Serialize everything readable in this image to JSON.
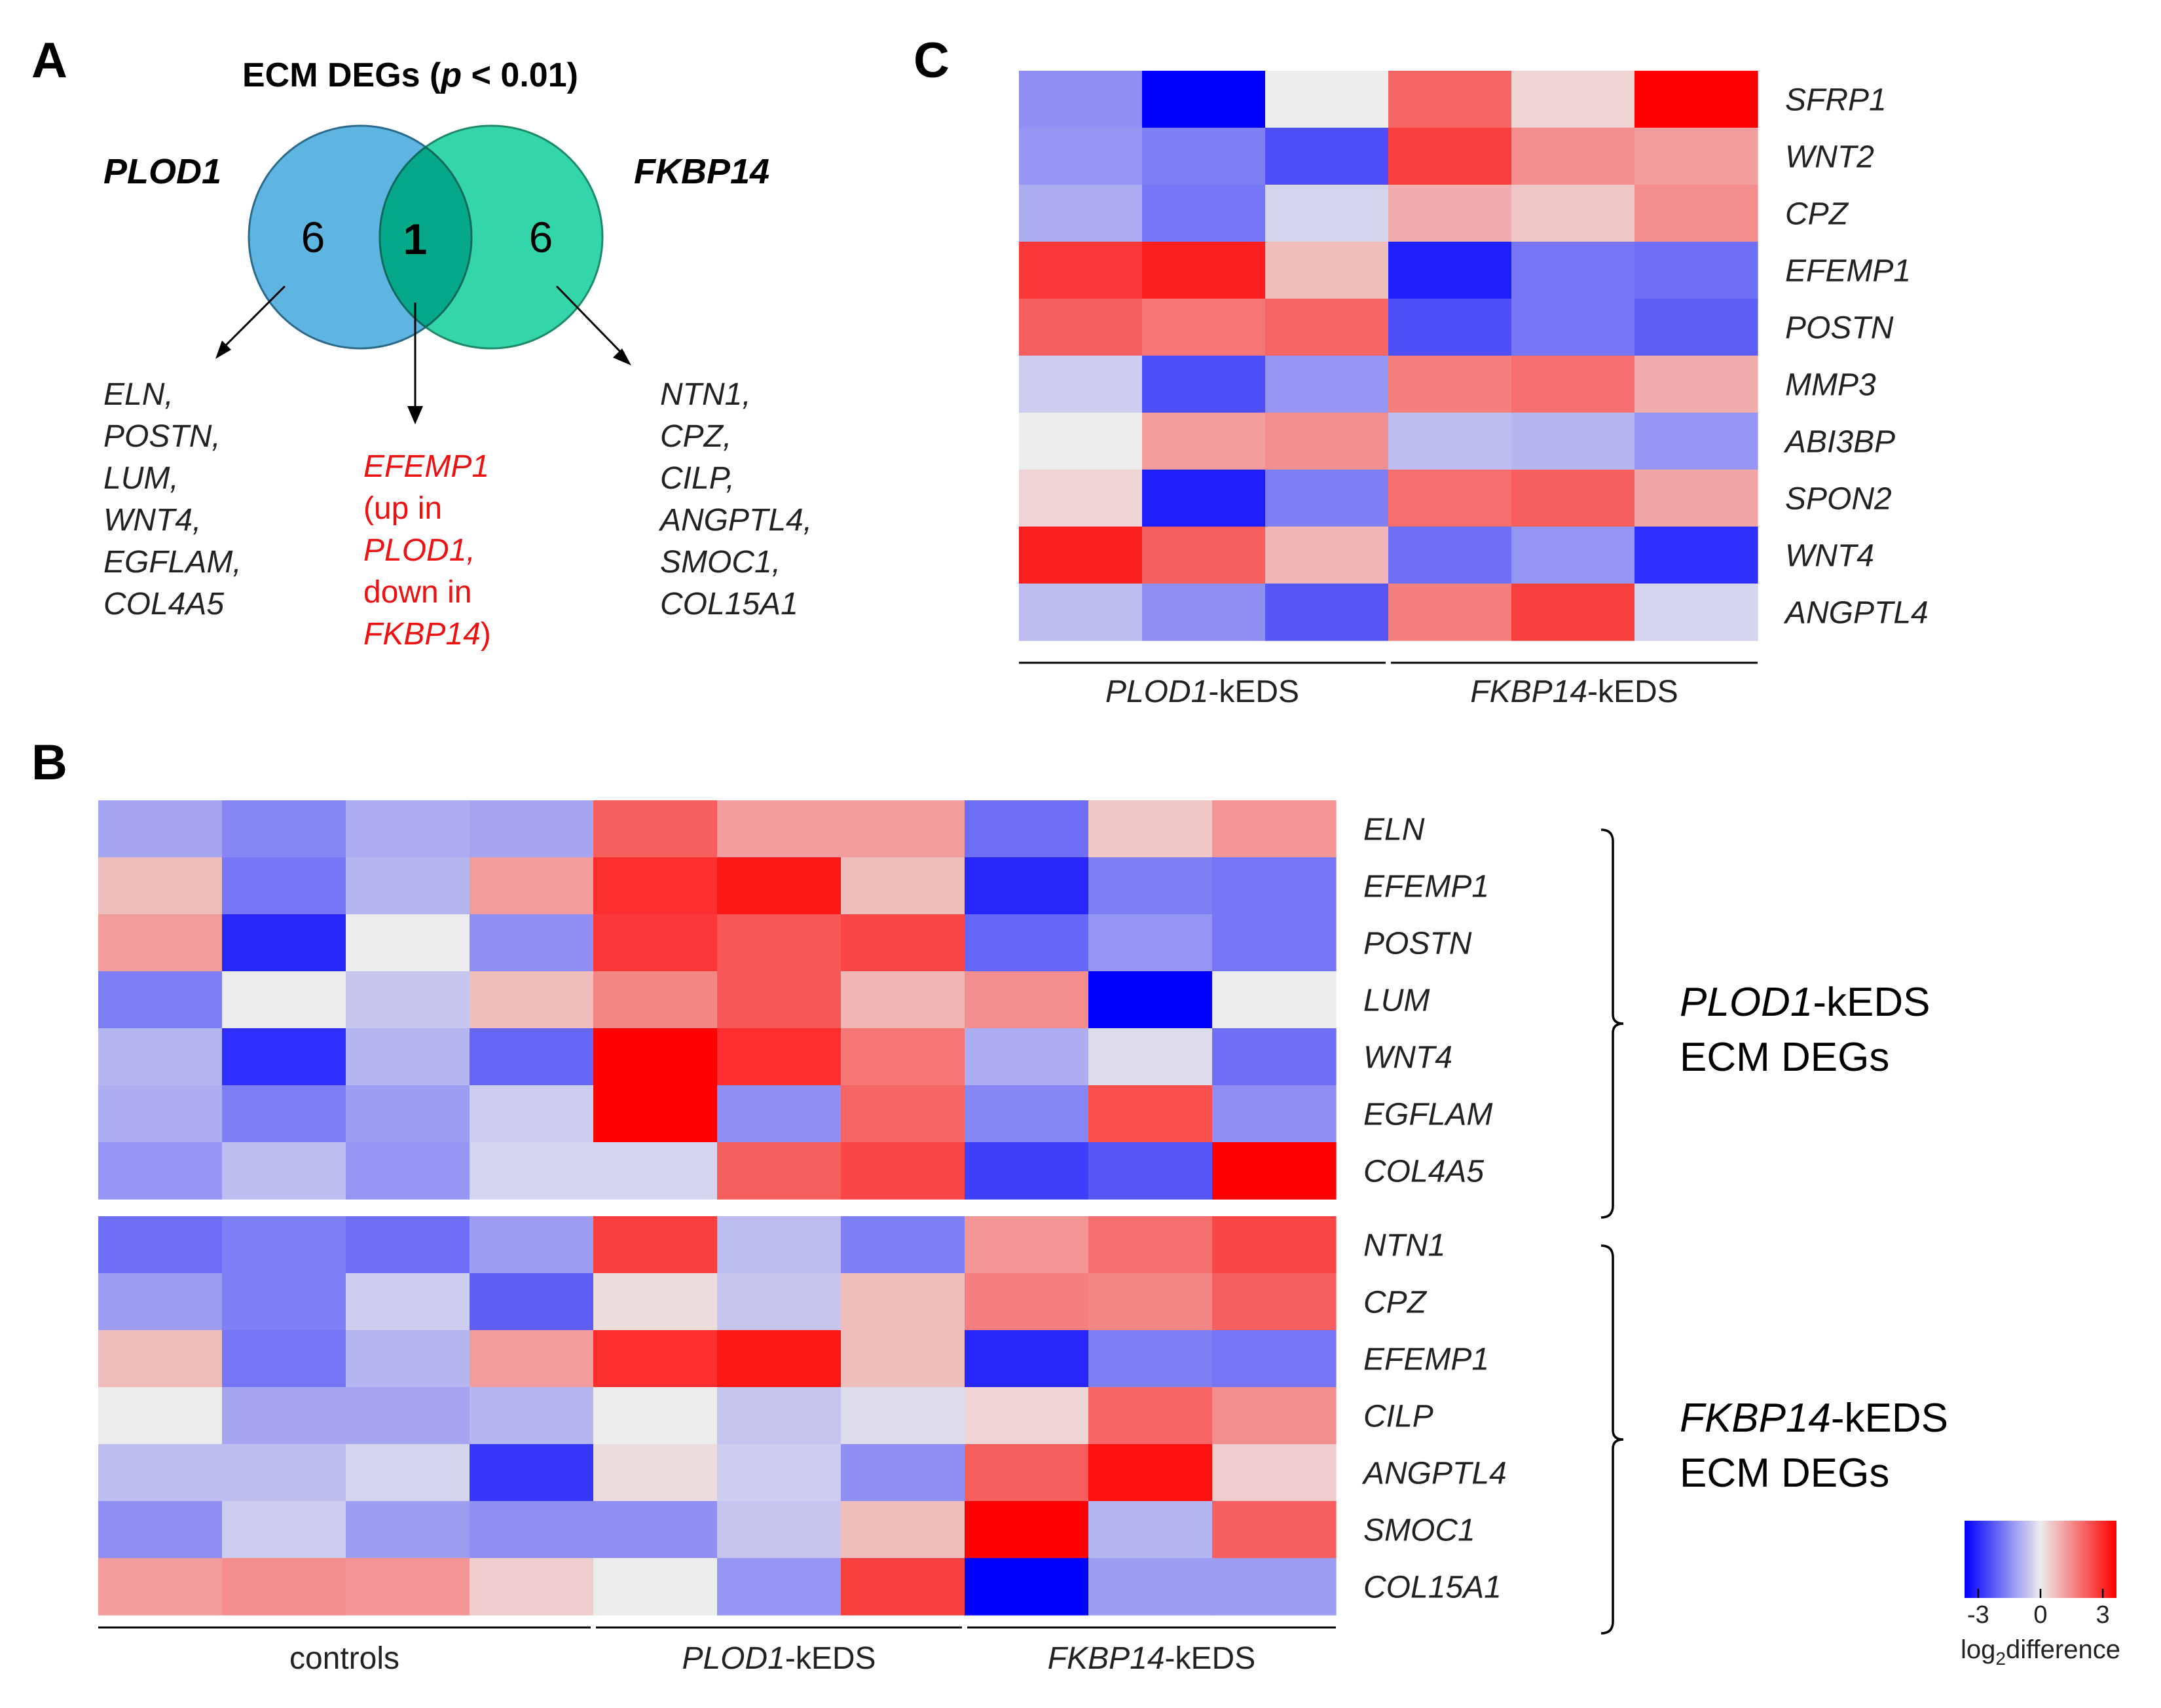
{
  "panels": {
    "a": "A",
    "b": "B",
    "c": "C"
  },
  "venn": {
    "title_prefix": "ECM DEGs (",
    "title_p": "p",
    "title_suffix": " < 0.01)",
    "left_set": "PLOD1",
    "right_set": "FKBP14",
    "left_only": "6",
    "shared": "1",
    "right_only": "6",
    "left_genes": [
      "ELN,",
      "POSTN,",
      "LUM,",
      "WNT4,",
      "EGFLAM,",
      "COL4A5"
    ],
    "shared_gene_lines": [
      {
        "text": "EFEMP1",
        "italic": true
      },
      {
        "text": "(up in",
        "italic": false
      },
      {
        "text": "PLOD1,",
        "italic": true
      },
      {
        "text": "down in",
        "italic": false
      },
      {
        "parts": [
          {
            "text": "FKBP14",
            "italic": true
          },
          {
            "text": ")",
            "italic": false
          }
        ]
      }
    ],
    "right_genes": [
      "NTN1,",
      "CPZ,",
      "CILP,",
      "ANGPTL4,",
      "SMOC1,",
      "COL15A1"
    ],
    "colors": {
      "left": "#5fb5e1",
      "right": "#33d6a8",
      "overlap": "#05a98a",
      "shared_text": "#ee1111"
    }
  },
  "chart_data": [
    {
      "type": "heatmap",
      "panel": "C",
      "value_label": "log2 difference",
      "vlim": [
        -3,
        3
      ],
      "rows": [
        "SFRP1",
        "WNT2",
        "CPZ",
        "EFEMP1",
        "POSTN",
        "MMP3",
        "ABI3BP",
        "SPON2",
        "WNT4",
        "ANGPTL4"
      ],
      "column_groups": [
        {
          "label_italic": "PLOD1",
          "label_rest": "-kEDS",
          "n": 3
        },
        {
          "label_italic": "FKBP14",
          "label_rest": "-kEDS",
          "n": 3
        }
      ],
      "values": [
        [
          -1.2,
          -3.0,
          0.0,
          1.7,
          0.3,
          3.0
        ],
        [
          -1.1,
          -1.4,
          -2.0,
          2.2,
          1.2,
          1.0
        ],
        [
          -0.8,
          -1.5,
          -0.3,
          0.8,
          0.5,
          1.2
        ],
        [
          2.3,
          2.6,
          0.6,
          -2.6,
          -1.5,
          -1.6
        ],
        [
          1.8,
          1.5,
          1.7,
          -2.0,
          -1.5,
          -1.8
        ],
        [
          -0.4,
          -2.0,
          -1.1,
          1.4,
          1.6,
          0.8
        ],
        [
          0.0,
          1.0,
          1.2,
          -0.6,
          -0.7,
          -1.1
        ],
        [
          0.3,
          -2.6,
          -1.4,
          1.6,
          1.8,
          0.9
        ],
        [
          2.6,
          1.8,
          0.7,
          -1.6,
          -1.1,
          -2.4
        ],
        [
          -0.6,
          -1.2,
          -1.9,
          1.4,
          2.2,
          -0.3
        ]
      ]
    },
    {
      "type": "heatmap",
      "panel": "B",
      "value_label": "log2 difference",
      "vlim": [
        -3,
        3
      ],
      "column_groups": [
        {
          "label_italic": "",
          "label_rest": "controls",
          "n": 4
        },
        {
          "label_italic": "PLOD1",
          "label_rest": "-kEDS",
          "n": 3
        },
        {
          "label_italic": "FKBP14",
          "label_rest": "-kEDS",
          "n": 3
        }
      ],
      "blocks": [
        {
          "bracket_italic": "PLOD1",
          "bracket_rest": "-kEDS",
          "bracket_line2": "ECM DEGs",
          "rows": [
            "ELN",
            "EFEMP1",
            "POSTN",
            "LUM",
            "WNT4",
            "EGFLAM",
            "COL4A5"
          ],
          "values": [
            [
              -0.9,
              -1.3,
              -0.8,
              -0.9,
              1.8,
              1.0,
              1.0,
              -1.6,
              0.5,
              1.1
            ],
            [
              0.6,
              -1.5,
              -0.7,
              1.0,
              2.4,
              2.7,
              0.6,
              -2.5,
              -1.4,
              -1.5
            ],
            [
              1.0,
              -2.5,
              0.0,
              -1.2,
              2.3,
              1.9,
              2.1,
              -1.7,
              -1.1,
              -1.5
            ],
            [
              -1.4,
              0.0,
              -0.5,
              0.6,
              1.3,
              1.9,
              0.7,
              1.2,
              -3.0,
              0.0
            ],
            [
              -0.7,
              -2.4,
              -0.7,
              -1.7,
              3.0,
              2.4,
              1.5,
              -0.8,
              -0.2,
              -1.6
            ],
            [
              -0.8,
              -1.4,
              -1.0,
              -0.4,
              3.0,
              -1.2,
              1.7,
              -1.3,
              2.0,
              -1.2
            ],
            [
              -1.1,
              -0.6,
              -1.1,
              -0.3,
              -0.3,
              1.8,
              2.1,
              -2.2,
              -1.9,
              3.0
            ]
          ]
        },
        {
          "bracket_italic": "FKBP14",
          "bracket_rest": "-kEDS",
          "bracket_line2": "ECM DEGs",
          "rows": [
            "NTN1",
            "CPZ",
            "EFEMP1",
            "CILP",
            "ANGPTL4",
            "SMOC1",
            "COL15A1"
          ],
          "values": [
            [
              -1.6,
              -1.4,
              -1.6,
              -1.0,
              2.2,
              -0.6,
              -1.4,
              1.1,
              1.6,
              2.1
            ],
            [
              -1.0,
              -1.4,
              -0.4,
              -1.8,
              0.2,
              -0.5,
              0.6,
              1.4,
              1.3,
              1.8
            ],
            [
              0.6,
              -1.5,
              -0.7,
              1.0,
              2.4,
              2.7,
              0.6,
              -2.5,
              -1.4,
              -1.5
            ],
            [
              0.0,
              -0.9,
              -0.9,
              -0.7,
              0.0,
              -0.5,
              -0.2,
              0.3,
              1.7,
              1.2
            ],
            [
              -0.6,
              -0.6,
              -0.3,
              -2.3,
              0.2,
              -0.4,
              -1.2,
              1.8,
              2.8,
              0.4
            ],
            [
              -1.2,
              -0.4,
              -1.0,
              -1.2,
              -1.2,
              -0.5,
              0.6,
              3.0,
              -0.7,
              1.8
            ],
            [
              1.0,
              1.2,
              1.1,
              0.4,
              0.0,
              -1.1,
              2.2,
              -3.0,
              -1.0,
              -1.0
            ]
          ]
        }
      ]
    }
  ],
  "legend": {
    "ticks": [
      -3,
      0,
      3
    ],
    "tick_labels": [
      "-3",
      "0",
      "3"
    ],
    "title_prefix": "log",
    "title_sub": "2",
    "title_suffix": "difference",
    "colors": {
      "low": "#0000ff",
      "mid": "#ececec",
      "high": "#ff0000"
    }
  }
}
